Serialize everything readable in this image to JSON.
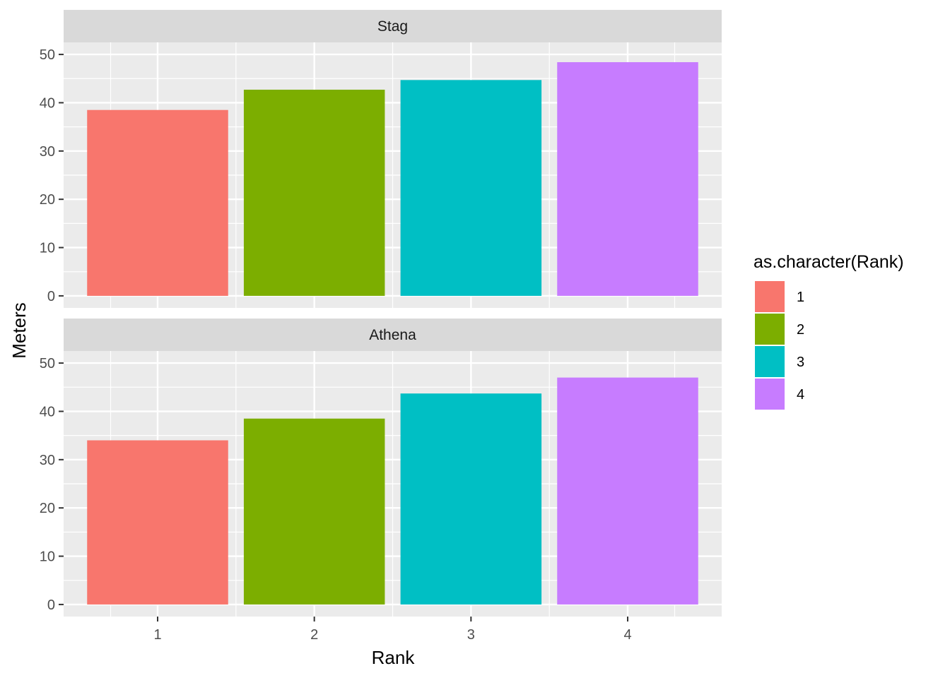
{
  "chart_data": {
    "type": "bar",
    "facet_layout": "vertical",
    "xlabel": "Rank",
    "ylabel": "Meters",
    "categories": [
      "1",
      "2",
      "3",
      "4"
    ],
    "ylim": [
      0,
      50
    ],
    "yticks": [
      0,
      10,
      20,
      30,
      40,
      50
    ],
    "grid": true,
    "panels": [
      {
        "label": "Stag",
        "values": [
          38.5,
          42.7,
          44.7,
          48.4
        ]
      },
      {
        "label": "Athena",
        "values": [
          34.0,
          38.5,
          43.7,
          47.0
        ]
      }
    ],
    "legend": {
      "title": "as.character(Rank)",
      "position": "right",
      "entries": [
        "1",
        "2",
        "3",
        "4"
      ]
    },
    "colors": [
      "#F8766D",
      "#7CAE00",
      "#00BFC4",
      "#C77CFF"
    ]
  }
}
